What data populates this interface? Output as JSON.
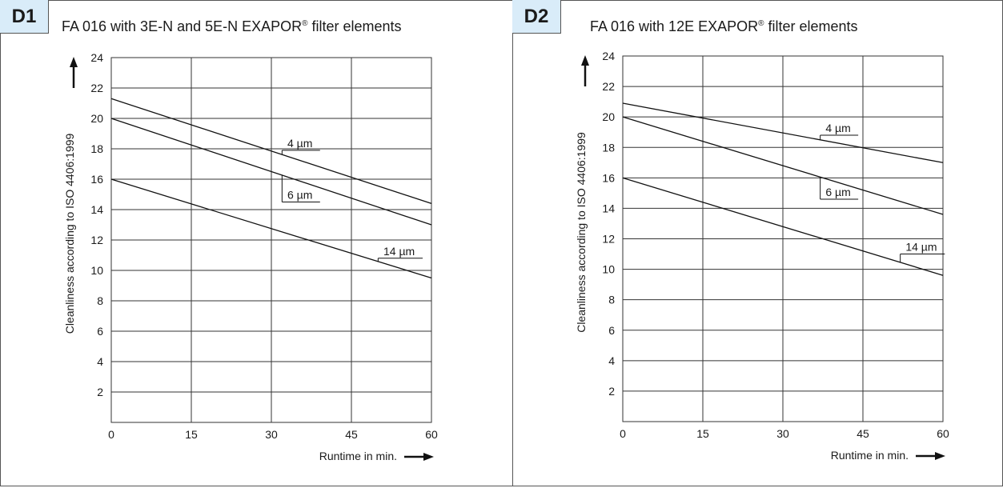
{
  "panels": [
    {
      "badge": "D1",
      "title_main": "FA 016 with 3E-N and 5E-N EXAPOR",
      "title_reg": "®",
      "title_tail": " filter elements"
    },
    {
      "badge": "D2",
      "title_main": "FA 016 with 12E EXAPOR",
      "title_reg": "®",
      "title_tail": " filter elements"
    }
  ],
  "chart_data": [
    {
      "type": "line",
      "title": "FA 016 with 3E-N and 5E-N EXAPOR® filter elements",
      "xlabel": "Runtime in min.",
      "ylabel": "Cleanliness according to ISO 4406:1999",
      "xlim": [
        0,
        60
      ],
      "ylim": [
        0,
        24
      ],
      "xticks": [
        0,
        15,
        30,
        45,
        60
      ],
      "yticks": [
        2,
        4,
        6,
        8,
        10,
        12,
        14,
        16,
        18,
        20,
        22,
        24
      ],
      "grid": true,
      "series": [
        {
          "name": "4 µm",
          "x": [
            0,
            60
          ],
          "y": [
            21.3,
            14.4
          ]
        },
        {
          "name": "6 µm",
          "x": [
            0,
            60
          ],
          "y": [
            20.0,
            13.0
          ]
        },
        {
          "name": "14 µm",
          "x": [
            0,
            60
          ],
          "y": [
            16.0,
            9.5
          ]
        }
      ],
      "annotations": [
        {
          "text": "4 µm",
          "series": "4 µm",
          "leader_x": 32,
          "label_x": 33,
          "label_y": 17.9
        },
        {
          "text": "6 µm",
          "series": "6 µm",
          "leader_x": 32,
          "label_x": 33,
          "label_y": 14.5
        },
        {
          "text": "14 µm",
          "series": "14 µm",
          "leader_x": 50,
          "label_x": 51,
          "label_y": 10.8
        }
      ]
    },
    {
      "type": "line",
      "title": "FA 016 with 12E EXAPOR® filter elements",
      "xlabel": "Runtime in min.",
      "ylabel": "Cleanliness according to ISO 4406:1999",
      "xlim": [
        0,
        60
      ],
      "ylim": [
        0,
        24
      ],
      "xticks": [
        0,
        15,
        30,
        45,
        60
      ],
      "yticks": [
        2,
        4,
        6,
        8,
        10,
        12,
        14,
        16,
        18,
        20,
        22,
        24
      ],
      "grid": true,
      "series": [
        {
          "name": "4 µm",
          "x": [
            0,
            60
          ],
          "y": [
            20.9,
            17.0
          ]
        },
        {
          "name": "6 µm",
          "x": [
            0,
            60
          ],
          "y": [
            20.0,
            13.6
          ]
        },
        {
          "name": "14 µm",
          "x": [
            0,
            60
          ],
          "y": [
            16.0,
            9.6
          ]
        }
      ],
      "annotations": [
        {
          "text": "4 µm",
          "series": "4 µm",
          "leader_x": 37,
          "label_x": 38,
          "label_y": 18.8
        },
        {
          "text": "6 µm",
          "series": "6 µm",
          "leader_x": 37,
          "label_x": 38,
          "label_y": 14.6
        },
        {
          "text": "14 µm",
          "series": "14 µm",
          "leader_x": 52,
          "label_x": 53,
          "label_y": 11.0
        }
      ]
    }
  ]
}
